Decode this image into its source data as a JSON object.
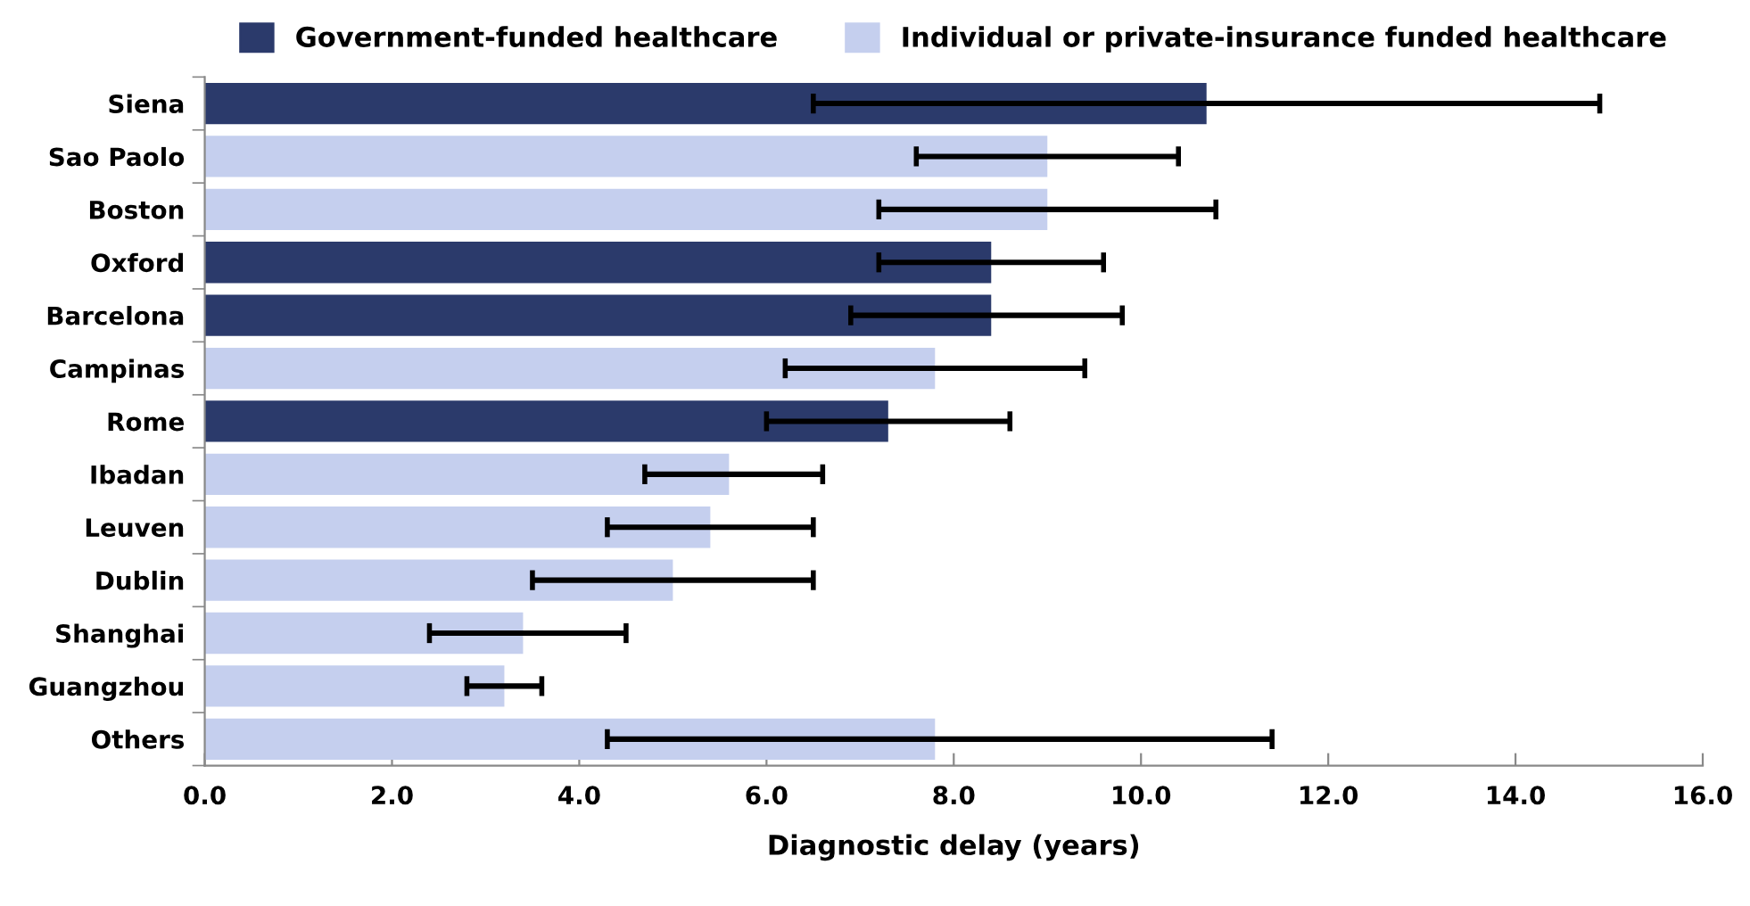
{
  "chart_data": {
    "type": "bar",
    "orientation": "horizontal",
    "xlabel": "Diagnostic delay (years)",
    "categories": [
      "Siena",
      "Sao Paolo",
      "Boston",
      "Oxford",
      "Barcelona",
      "Campinas",
      "Rome",
      "Ibadan",
      "Leuven",
      "Dublin",
      "Shanghai",
      "Guangzhou",
      "Others"
    ],
    "series": [
      {
        "name": "Government-funded healthcare",
        "color": "#2b3a6b",
        "values": [
          10.7,
          null,
          null,
          8.4,
          8.4,
          null,
          7.3,
          null,
          null,
          null,
          null,
          null,
          null
        ],
        "errors": [
          [
            6.5,
            14.9
          ],
          null,
          null,
          [
            7.2,
            9.6
          ],
          [
            6.9,
            9.8
          ],
          null,
          [
            6.0,
            8.6
          ],
          null,
          null,
          null,
          null,
          null,
          null
        ]
      },
      {
        "name": "Individual or private-insurance funded healthcare",
        "color": "#c5cfee",
        "values": [
          null,
          9.0,
          9.0,
          null,
          null,
          7.8,
          null,
          5.6,
          5.4,
          5.0,
          3.4,
          3.2,
          7.8
        ],
        "errors": [
          null,
          [
            7.6,
            10.4
          ],
          [
            7.2,
            10.8
          ],
          null,
          null,
          [
            6.2,
            9.4
          ],
          null,
          [
            4.7,
            6.6
          ],
          [
            4.3,
            6.5
          ],
          [
            3.5,
            6.5
          ],
          [
            2.4,
            4.5
          ],
          [
            2.8,
            3.6
          ],
          [
            4.3,
            11.4
          ]
        ]
      }
    ],
    "xlim": [
      0,
      16
    ],
    "xticks": [
      {
        "value": 0,
        "label": "0.0"
      },
      {
        "value": 2,
        "label": "2.0"
      },
      {
        "value": 4,
        "label": "4.0"
      },
      {
        "value": 6,
        "label": "6.0"
      },
      {
        "value": 8,
        "label": "8.0"
      },
      {
        "value": 10,
        "label": "10.0"
      },
      {
        "value": 12,
        "label": "12.0"
      },
      {
        "value": 14,
        "label": "14.0"
      },
      {
        "value": 16,
        "label": "16.0"
      }
    ],
    "legend": "top",
    "grid": false
  }
}
